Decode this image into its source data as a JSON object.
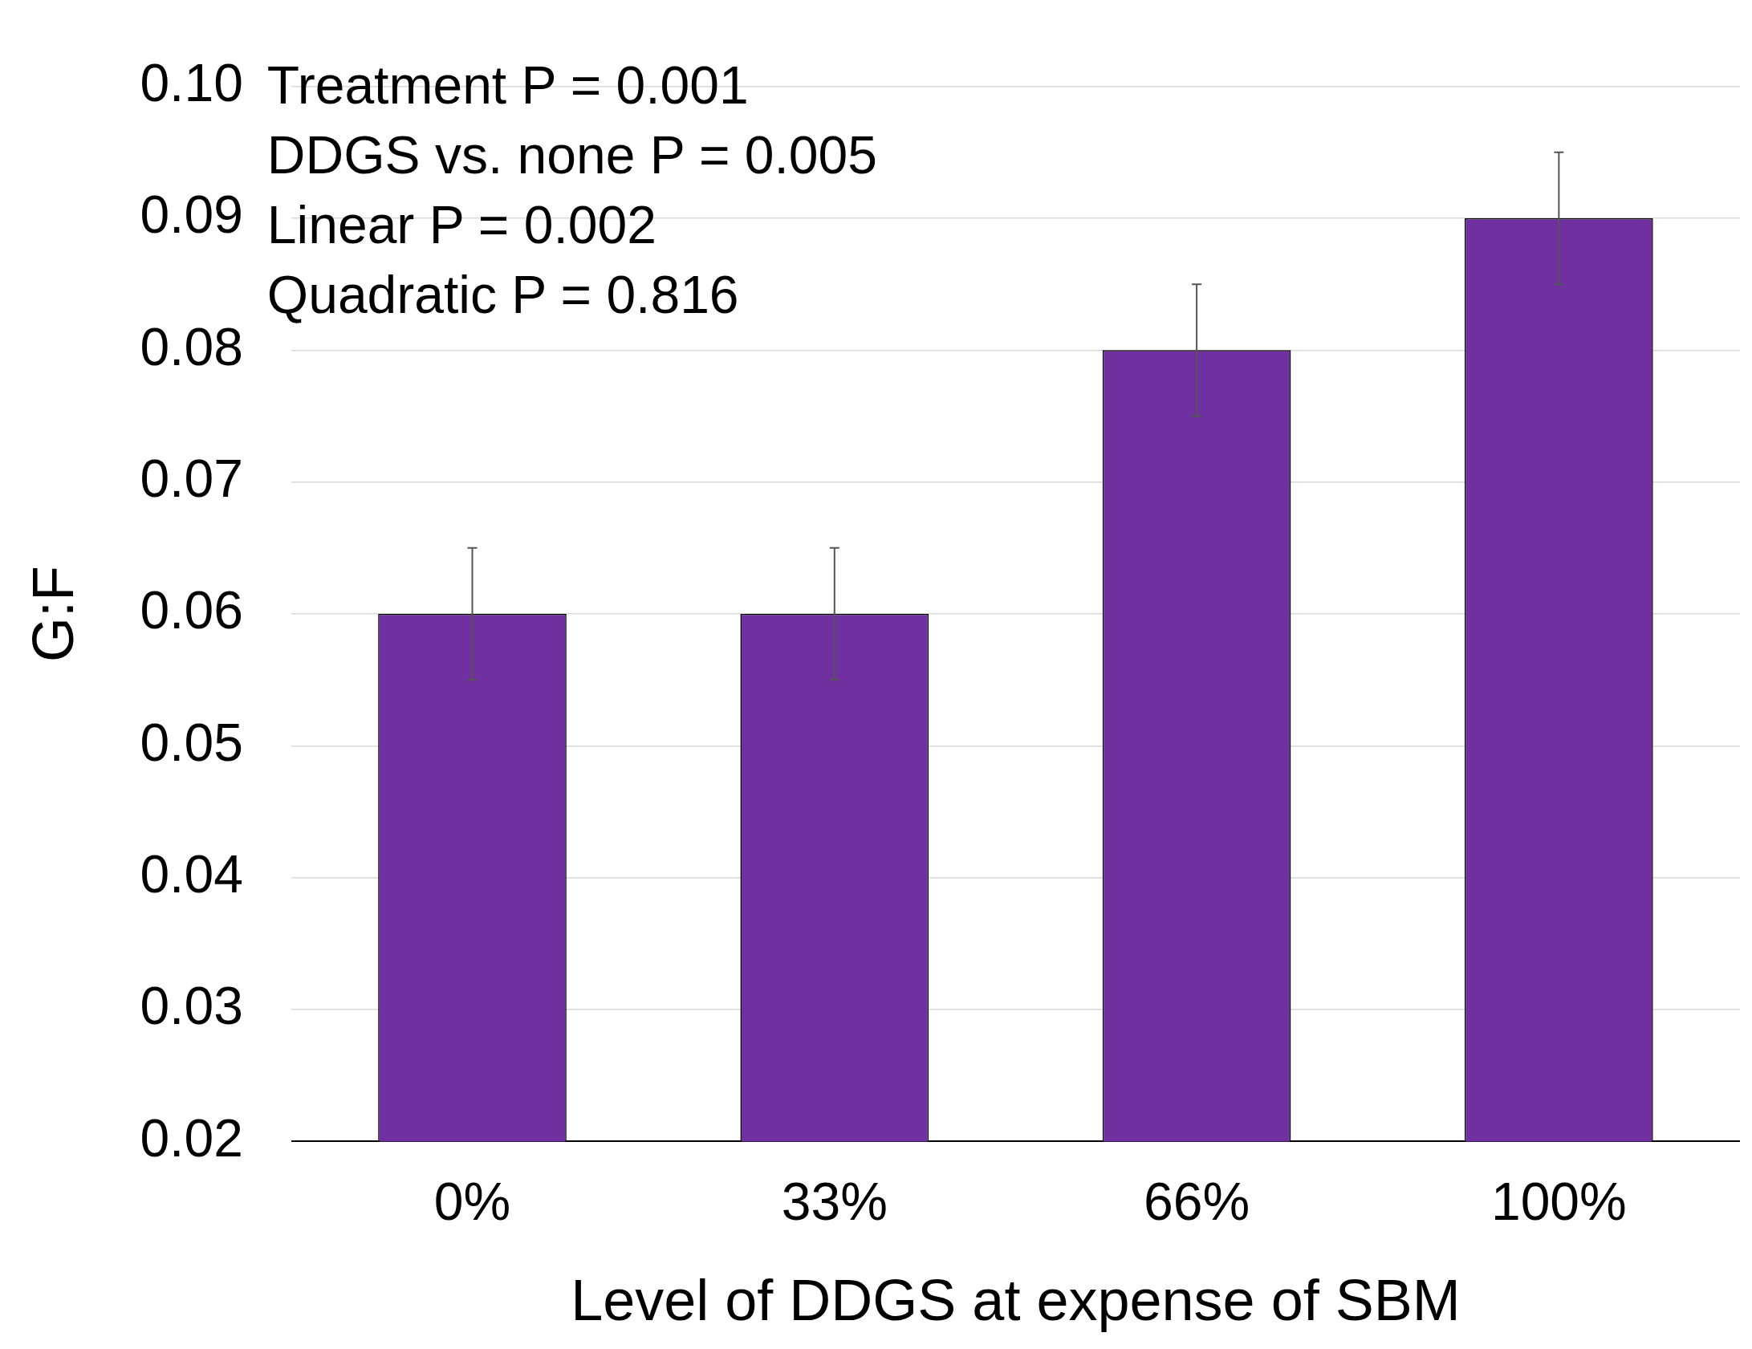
{
  "chart_data": {
    "type": "bar",
    "xlabel": "Level of DDGS at expense of SBM",
    "ylabel": "G:F",
    "categories": [
      "0%",
      "33%",
      "66%",
      "100%"
    ],
    "values": [
      0.06,
      0.06,
      0.08,
      0.09
    ],
    "errors": [
      0.005,
      0.005,
      0.005,
      0.005
    ],
    "color": "#7030a0",
    "ylim": [
      0.02,
      0.1
    ],
    "yticks": [
      0.02,
      0.03,
      0.04,
      0.05,
      0.06,
      0.07,
      0.08,
      0.09,
      {
        "value": 0.1,
        "label": "0.10"
      }
    ],
    "grid": "y",
    "legend": false,
    "annotations": [
      "Treatment P = 0.001",
      "DDGS vs. none P = 0.005",
      "Linear P = 0.002",
      "Quadratic P = 0.816"
    ]
  }
}
